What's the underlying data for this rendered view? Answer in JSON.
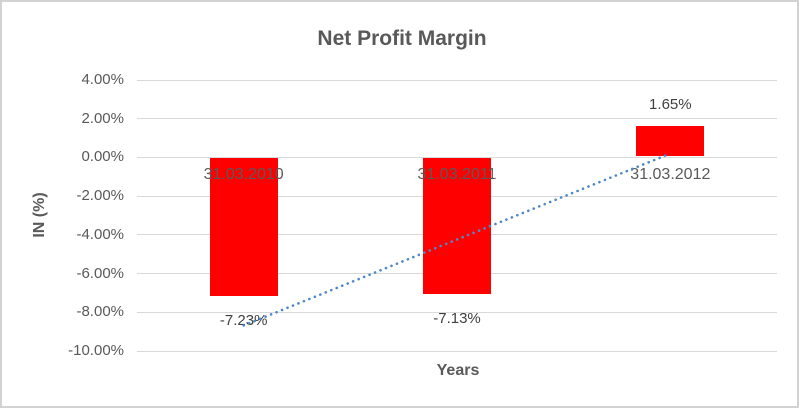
{
  "chart_data": {
    "type": "bar",
    "title": "Net Profit Margin",
    "xlabel": "Years",
    "ylabel": "IN (%)",
    "categories": [
      "31.03.2010",
      "31.03.2011",
      "31.03.2012"
    ],
    "values": [
      -7.23,
      -7.13,
      1.65
    ],
    "data_labels": [
      "-7.23%",
      "-7.13%",
      "1.65%"
    ],
    "ylim": [
      -10,
      4
    ],
    "ytick_step": 2,
    "ytick_labels": [
      "4.00%",
      "2.00%",
      "0.00%",
      "-2.00%",
      "-4.00%",
      "-6.00%",
      "-8.00%",
      "-10.00%"
    ],
    "grid": true,
    "legend": "none",
    "bar_color": "#ff0000",
    "trendline": {
      "type": "linear",
      "style": "dotted",
      "color": "#4e88c8",
      "start_value": -8.68,
      "end_value": 0.2
    }
  },
  "colors": {
    "background": "#ffffff",
    "border": "#d2d2d2",
    "gridline": "#d9d9d9",
    "title_text": "#595959",
    "axis_text": "#595959",
    "data_label_text": "#404040"
  }
}
